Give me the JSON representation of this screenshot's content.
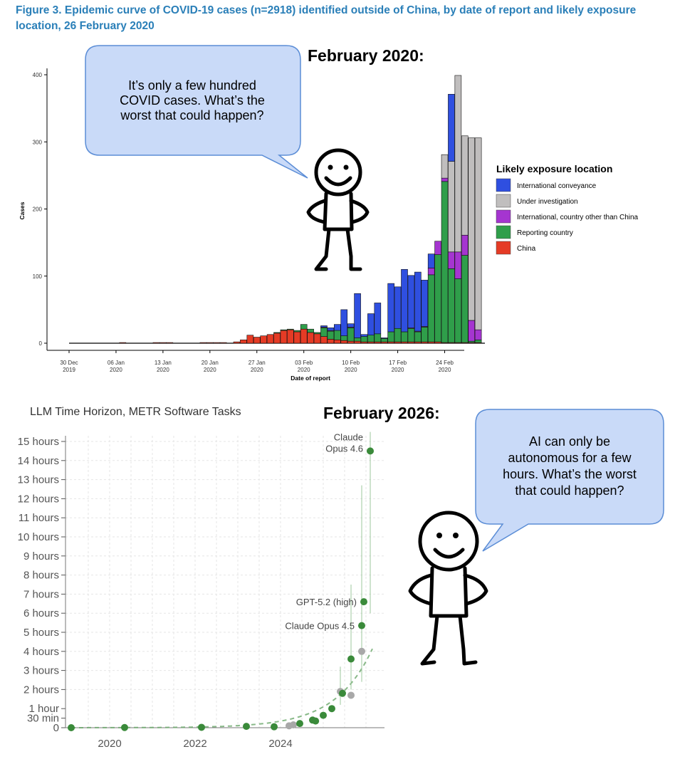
{
  "caption": "Figure 3. Epidemic curve of COVID-19 cases (n=2918) identified outside of China, by date of report and likely exposure location, 26 February 2020",
  "panel1_heading": "February 2020:",
  "panel2_heading": "February 2026:",
  "bubble1_lines": [
    "It’s only a few hundred",
    "COVID cases. What’s the",
    "worst that could happen?"
  ],
  "bubble2_lines": [
    "AI can only be",
    "autonomous for a few",
    "hours. What’s the worst",
    "that could happen?"
  ],
  "colors": {
    "International conveyance": "#2f4fe0",
    "Under investigation": "#c0bebe",
    "International, country other than China": "#a535d0",
    "Reporting country": "#2f9e4a",
    "China": "#e53b25",
    "metr_green": "#3a8a3a",
    "metr_gray": "#a8a8a8"
  },
  "chart_data": [
    {
      "type": "bar",
      "stacked": true,
      "title": "",
      "xlabel": "Date of report",
      "ylabel": "Cases",
      "ylim": [
        0,
        400
      ],
      "yticks": [
        "0",
        "100",
        "200",
        "300",
        "400"
      ],
      "xticks": [
        {
          "label1": "30 Dec",
          "label2": "2019",
          "day": 0
        },
        {
          "label1": "06 Jan",
          "label2": "2020",
          "day": 7
        },
        {
          "label1": "13 Jan",
          "label2": "2020",
          "day": 14
        },
        {
          "label1": "20 Jan",
          "label2": "2020",
          "day": 21
        },
        {
          "label1": "27 Jan",
          "label2": "2020",
          "day": 28
        },
        {
          "label1": "03 Feb",
          "label2": "2020",
          "day": 35
        },
        {
          "label1": "10 Feb",
          "label2": "2020",
          "day": 42
        },
        {
          "label1": "17 Feb",
          "label2": "2020",
          "day": 49
        },
        {
          "label1": "24 Feb",
          "label2": "2020",
          "day": 56
        }
      ],
      "legend_title": "Likely exposure location",
      "legend_position": "right",
      "series_order": [
        "China",
        "Reporting country",
        "International, country other than China",
        "Under investigation",
        "International conveyance"
      ],
      "legend_order": [
        "International conveyance",
        "Under investigation",
        "International, country other than China",
        "Reporting country",
        "China"
      ],
      "bars": [
        {
          "day": 8,
          "values": [
            1,
            0,
            0,
            0,
            0
          ]
        },
        {
          "day": 13,
          "values": [
            1,
            0,
            0,
            0,
            0
          ]
        },
        {
          "day": 14,
          "values": [
            1,
            0,
            0,
            0,
            0
          ]
        },
        {
          "day": 15,
          "values": [
            1,
            0,
            0,
            0,
            0
          ]
        },
        {
          "day": 20,
          "values": [
            1,
            0,
            0,
            0,
            0
          ]
        },
        {
          "day": 21,
          "values": [
            1,
            0,
            0,
            0,
            0
          ]
        },
        {
          "day": 22,
          "values": [
            1,
            0,
            0,
            0,
            0
          ]
        },
        {
          "day": 23,
          "values": [
            1,
            0,
            0,
            0,
            0
          ]
        },
        {
          "day": 25,
          "values": [
            2,
            0,
            0,
            0,
            0
          ]
        },
        {
          "day": 26,
          "values": [
            5,
            0,
            0,
            0,
            0
          ]
        },
        {
          "day": 27,
          "values": [
            12,
            0,
            0,
            0,
            0
          ]
        },
        {
          "day": 28,
          "values": [
            9,
            0,
            0,
            0,
            0
          ]
        },
        {
          "day": 29,
          "values": [
            11,
            0,
            0,
            0,
            0
          ]
        },
        {
          "day": 30,
          "values": [
            13,
            0,
            0,
            0,
            0
          ]
        },
        {
          "day": 31,
          "values": [
            15,
            1,
            0,
            0,
            0
          ]
        },
        {
          "day": 32,
          "values": [
            19,
            1,
            0,
            0,
            0
          ]
        },
        {
          "day": 33,
          "values": [
            20,
            1,
            0,
            0,
            0
          ]
        },
        {
          "day": 34,
          "values": [
            17,
            2,
            0,
            0,
            0
          ]
        },
        {
          "day": 35,
          "values": [
            21,
            7,
            0,
            0,
            0
          ]
        },
        {
          "day": 36,
          "values": [
            16,
            5,
            0,
            0,
            0
          ]
        },
        {
          "day": 37,
          "values": [
            14,
            2,
            0,
            0,
            0
          ]
        },
        {
          "day": 38,
          "values": [
            10,
            13,
            1,
            0,
            2
          ]
        },
        {
          "day": 39,
          "values": [
            6,
            12,
            1,
            0,
            4
          ]
        },
        {
          "day": 40,
          "values": [
            5,
            14,
            0,
            0,
            9
          ]
        },
        {
          "day": 41,
          "values": [
            4,
            7,
            0,
            0,
            39
          ]
        },
        {
          "day": 42,
          "values": [
            3,
            20,
            1,
            0,
            5
          ]
        },
        {
          "day": 43,
          "values": [
            3,
            5,
            0,
            0,
            66
          ]
        },
        {
          "day": 44,
          "values": [
            2,
            8,
            0,
            0,
            3
          ]
        },
        {
          "day": 45,
          "values": [
            2,
            10,
            0,
            0,
            32
          ]
        },
        {
          "day": 46,
          "values": [
            2,
            12,
            0,
            0,
            46
          ]
        },
        {
          "day": 47,
          "values": [
            2,
            5,
            0,
            0,
            1
          ]
        },
        {
          "day": 48,
          "values": [
            2,
            15,
            0,
            0,
            72
          ]
        },
        {
          "day": 49,
          "values": [
            2,
            20,
            0,
            0,
            62
          ]
        },
        {
          "day": 50,
          "values": [
            2,
            15,
            0,
            0,
            93
          ]
        },
        {
          "day": 51,
          "values": [
            2,
            20,
            1,
            0,
            78
          ]
        },
        {
          "day": 52,
          "values": [
            2,
            15,
            1,
            0,
            88
          ]
        },
        {
          "day": 53,
          "values": [
            2,
            22,
            1,
            0,
            69
          ]
        },
        {
          "day": 54,
          "values": [
            2,
            100,
            10,
            0,
            21
          ]
        },
        {
          "day": 55,
          "values": [
            2,
            130,
            20,
            0,
            0
          ]
        },
        {
          "day": 56,
          "values": [
            1,
            240,
            5,
            35,
            0
          ]
        },
        {
          "day": 57,
          "values": [
            1,
            110,
            25,
            135,
            100
          ]
        },
        {
          "day": 58,
          "values": [
            1,
            95,
            40,
            263,
            0
          ]
        },
        {
          "day": 59,
          "values": [
            1,
            130,
            30,
            148,
            0
          ]
        },
        {
          "day": 60,
          "values": [
            1,
            2,
            31,
            272,
            0
          ]
        },
        {
          "day": 61,
          "values": [
            1,
            4,
            15,
            286,
            0
          ]
        }
      ]
    },
    {
      "type": "scatter",
      "title": "LLM Time Horizon, METR Software Tasks",
      "xlabel": "",
      "ylabel": "",
      "ylim_hours": [
        0,
        15
      ],
      "yticks": [
        "0",
        "30 min",
        "1 hour",
        "2 hours",
        "3 hours",
        "4 hours",
        "5 hours",
        "6 hours",
        "7 hours",
        "8 hours",
        "9 hours",
        "10 hours",
        "11 hours",
        "12 hours",
        "13 hours",
        "14 hours",
        "15 hours"
      ],
      "xticks": [
        "2020",
        "2022",
        "2024"
      ],
      "xlim_year": [
        2019.0,
        2026.2
      ],
      "trend": "dashed exponential fit",
      "points": [
        {
          "x": 2019.1,
          "y": 0.0,
          "color": "green"
        },
        {
          "x": 2020.35,
          "y": 0.01,
          "color": "green"
        },
        {
          "x": 2022.15,
          "y": 0.02,
          "color": "green"
        },
        {
          "x": 2023.2,
          "y": 0.07,
          "color": "green"
        },
        {
          "x": 2023.85,
          "y": 0.05,
          "color": "green"
        },
        {
          "x": 2024.2,
          "y": 0.1,
          "color": "gray"
        },
        {
          "x": 2024.3,
          "y": 0.15,
          "color": "gray"
        },
        {
          "x": 2024.45,
          "y": 0.22,
          "color": "green"
        },
        {
          "x": 2024.75,
          "y": 0.4,
          "color": "green"
        },
        {
          "x": 2024.82,
          "y": 0.35,
          "color": "green"
        },
        {
          "x": 2025.0,
          "y": 0.65,
          "color": "green"
        },
        {
          "x": 2025.2,
          "y": 1.0,
          "color": "green"
        },
        {
          "x": 2025.4,
          "y": 1.9,
          "color": "gray"
        },
        {
          "x": 2025.45,
          "y": 1.8,
          "color": "green"
        },
        {
          "x": 2025.65,
          "y": 1.7,
          "color": "gray"
        },
        {
          "x": 2025.65,
          "y": 3.6,
          "color": "green"
        },
        {
          "x": 2025.9,
          "y": 4.0,
          "color": "gray"
        },
        {
          "x": 2025.9,
          "y": 5.35,
          "color": "green",
          "label": "Claude Opus 4.5"
        },
        {
          "x": 2025.95,
          "y": 6.6,
          "color": "green",
          "label": "GPT-5.2 (high)"
        },
        {
          "x": 2026.1,
          "y": 14.5,
          "color": "green",
          "label": "Claude\nOpus 4.6"
        }
      ]
    }
  ]
}
